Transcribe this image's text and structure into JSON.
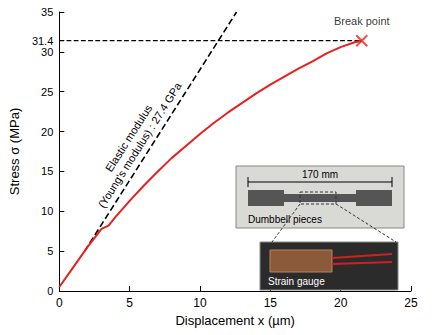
{
  "chart_data": {
    "type": "line",
    "x_label": "Displacement x (µm)",
    "y_label": "Stress σ (MPa)",
    "xlim": [
      0,
      25
    ],
    "xticks": [
      0,
      5,
      10,
      15,
      20,
      25
    ],
    "ylim": [
      0,
      35
    ],
    "yticks": [
      0,
      5,
      10,
      15,
      20,
      25,
      30,
      31.4,
      35
    ],
    "grid": false,
    "series": [
      {
        "type": "line",
        "color": "#e8201e",
        "line_style": "solid",
        "x": [
          0,
          1,
          2,
          3,
          3.5,
          4,
          5,
          6,
          7,
          8,
          9,
          10,
          11,
          12,
          13,
          14,
          15,
          16,
          17,
          18,
          19,
          20,
          21,
          21.5
        ],
        "values": [
          0.5,
          3,
          5.5,
          7.8,
          8.2,
          9.3,
          11.3,
          13.2,
          15,
          16.7,
          18.2,
          19.7,
          21.1,
          22.4,
          23.6,
          24.8,
          25.9,
          26.9,
          27.9,
          28.8,
          29.8,
          30.6,
          31.2,
          31.4
        ]
      }
    ],
    "break_point": {
      "label": "Break point",
      "x": 21.5,
      "y": 31.4,
      "color": "#e8201e",
      "marker": "x",
      "line_style": "dashed"
    },
    "modulus_line": {
      "label": [
        "Elastic modulus",
        "(Young's modulus) : 27.4 GPa"
      ],
      "x": [
        1.8,
        12.6
      ],
      "values": [
        5,
        35
      ],
      "color": "#000000",
      "line_style": "dashed"
    },
    "inset": {
      "length_label": "170 mm",
      "labels": [
        "Dumbbell pieces",
        "Strain gauge"
      ]
    }
  }
}
